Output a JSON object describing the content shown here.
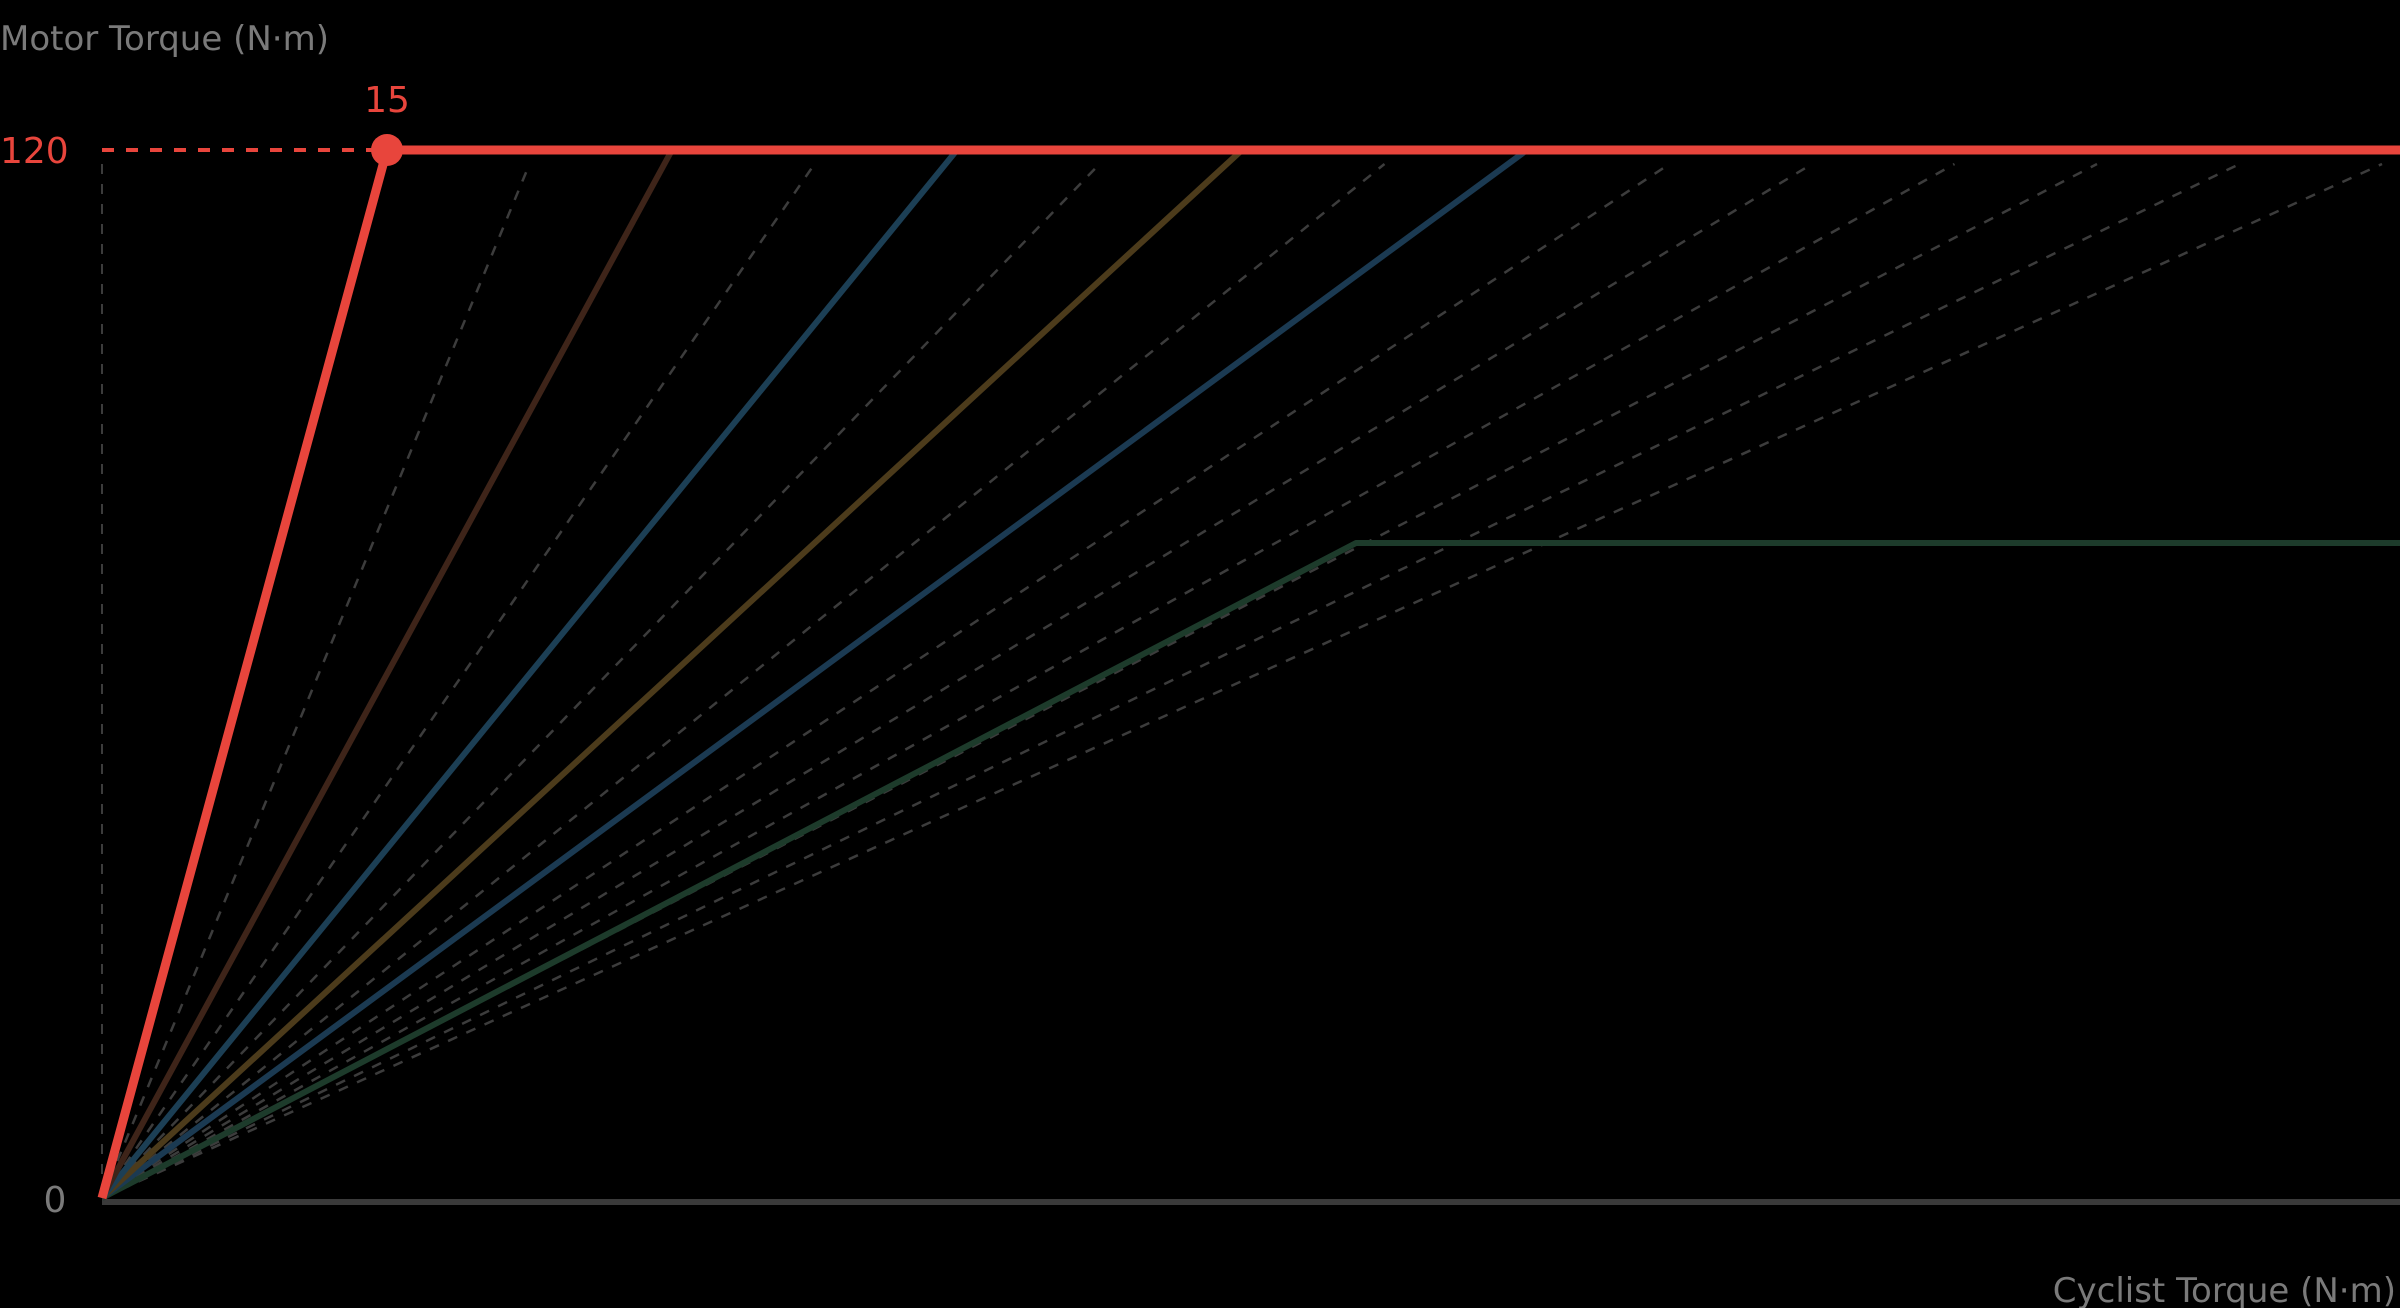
{
  "chart_data": {
    "type": "line",
    "xlabel": "Cyclist Torque (N·m)",
    "ylabel": "Motor Torque (N·m)",
    "xlim": [
      0,
      121
    ],
    "ylim": [
      0,
      120
    ],
    "y_ticks": [
      "0",
      "120"
    ],
    "grid": false,
    "highlight": {
      "x": 15,
      "y": 120,
      "x_label": "15",
      "y_label": "120"
    },
    "series": [
      {
        "color": "#E8453C",
        "points": [
          [
            0,
            0
          ],
          [
            15,
            120
          ],
          [
            121,
            120
          ]
        ],
        "emphasis": true
      },
      {
        "color": "#3E2419",
        "points": [
          [
            0,
            0
          ],
          [
            30,
            120
          ],
          [
            121,
            120
          ]
        ]
      },
      {
        "color": "#1C3F55",
        "points": [
          [
            0,
            0
          ],
          [
            45,
            120
          ],
          [
            121,
            120
          ]
        ]
      },
      {
        "color": "#4C3B1B",
        "points": [
          [
            0,
            0
          ],
          [
            60,
            120
          ],
          [
            121,
            120
          ]
        ]
      },
      {
        "color": "#1B3A52",
        "points": [
          [
            0,
            0
          ],
          [
            75,
            120
          ],
          [
            121,
            120
          ]
        ]
      },
      {
        "color": "#1D3B2B",
        "points": [
          [
            0,
            0
          ],
          [
            66,
            75
          ],
          [
            121,
            75
          ]
        ]
      }
    ],
    "reference_lines": {
      "color": "#3c3c3c",
      "ends_at_y120_x": [
        22.5,
        37.5,
        52.5,
        67.5,
        82.5,
        90,
        97.5,
        105,
        112.5,
        120
      ]
    },
    "colors": {
      "axis": "#3a3a3a",
      "label": "#7a7a7a",
      "accent": "#E8453C"
    }
  }
}
